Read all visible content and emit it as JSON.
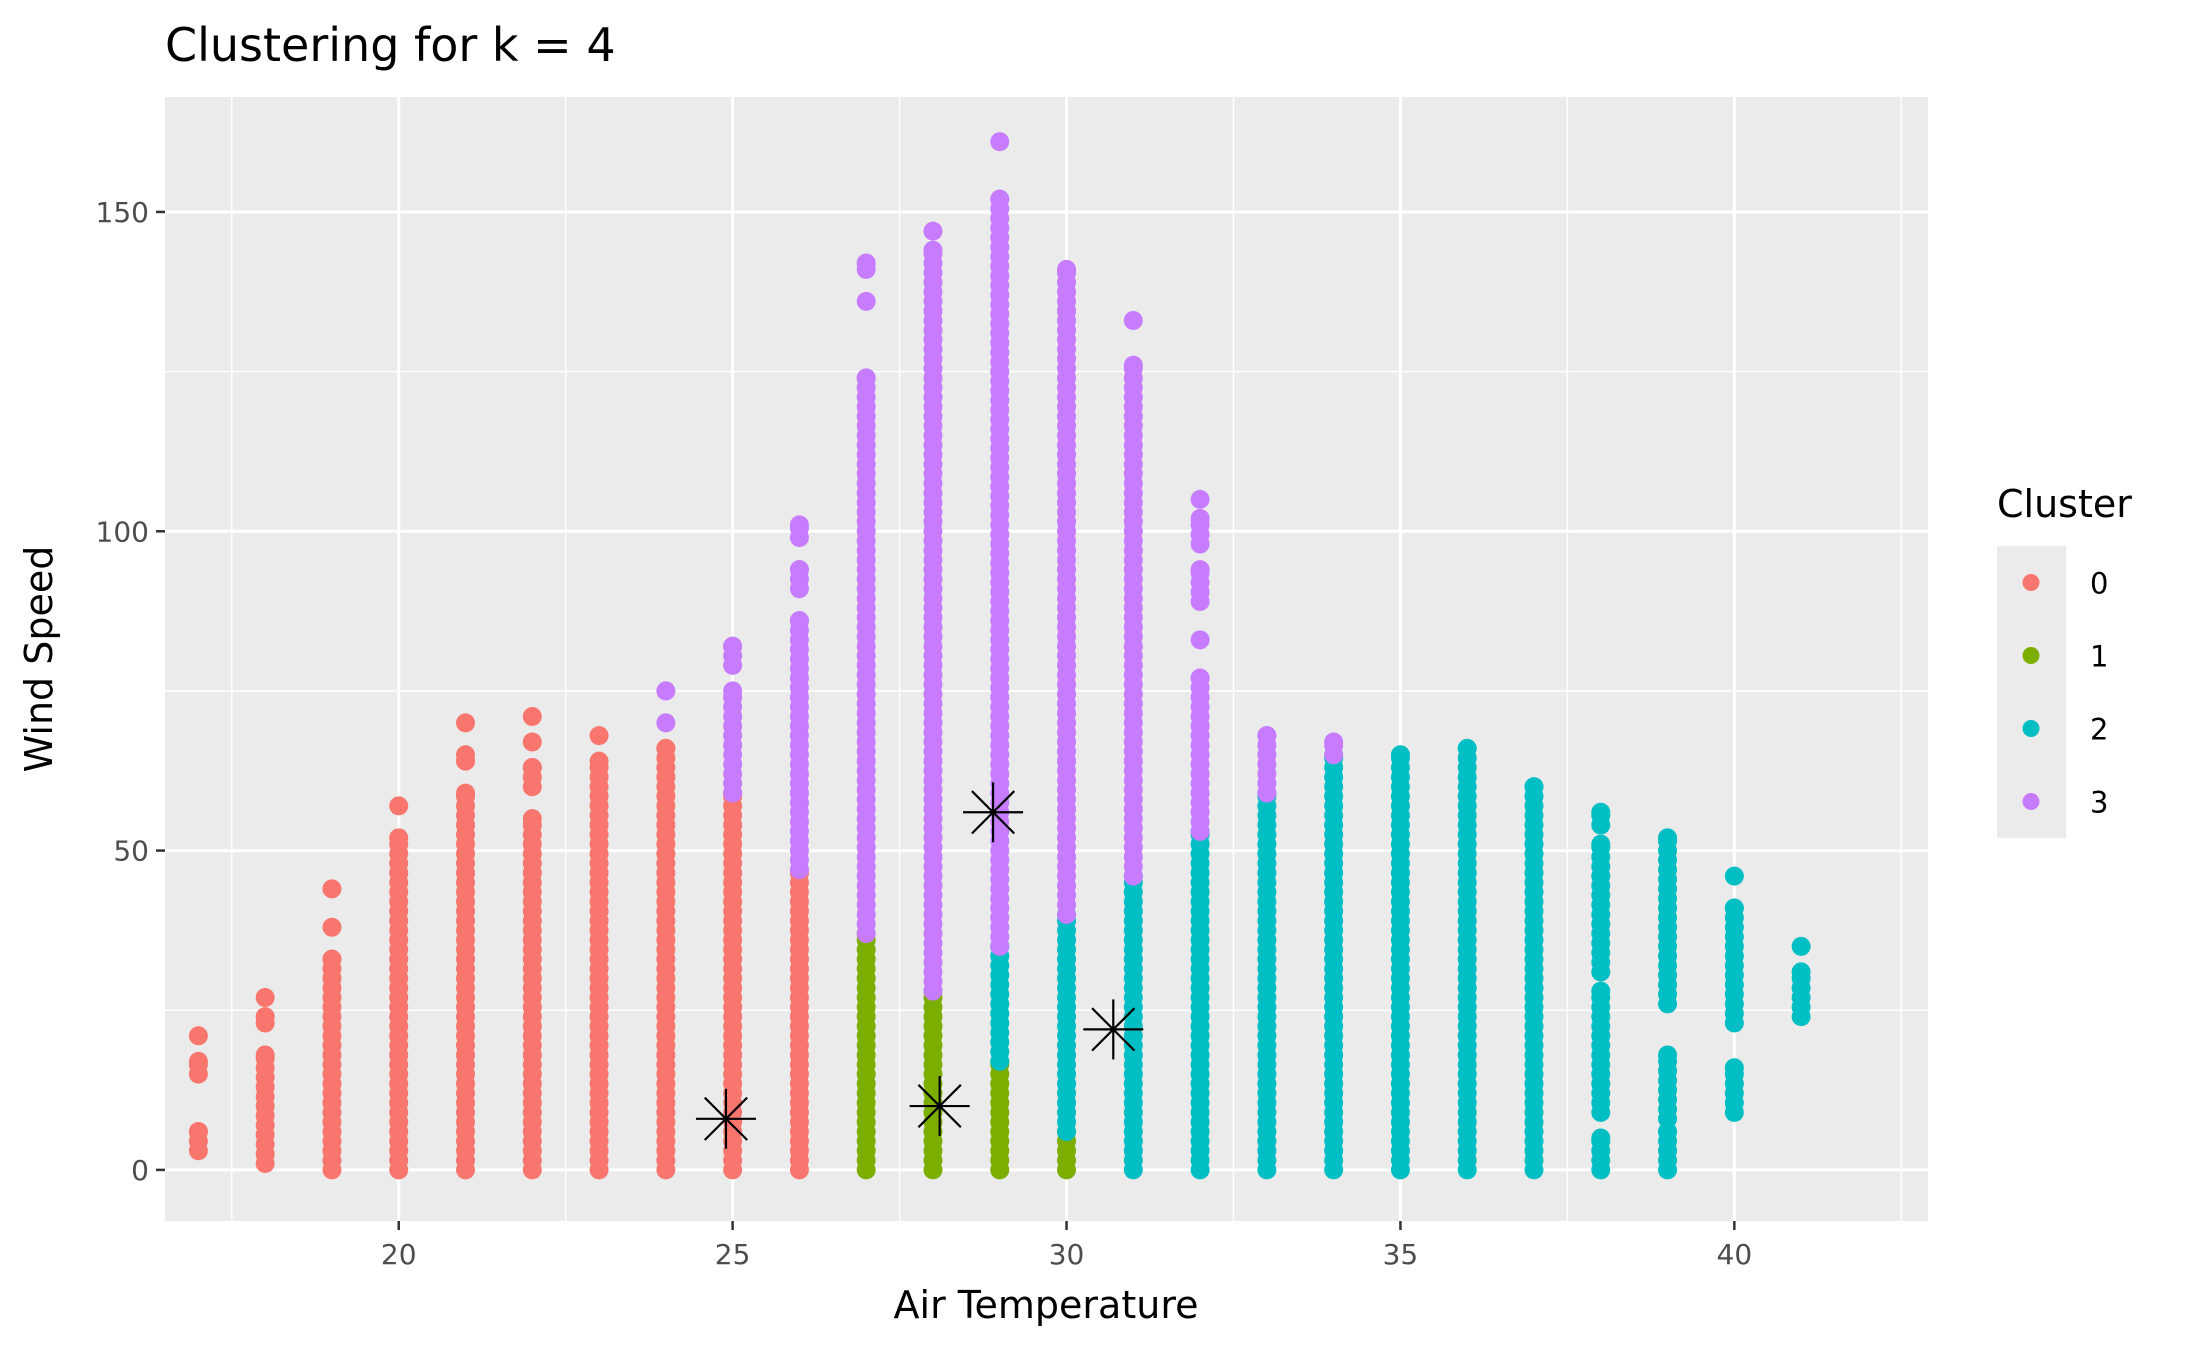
{
  "chart_data": {
    "type": "scatter",
    "title": "Clustering for k = 4",
    "xlabel": "Air Temperature",
    "ylabel": "Wind Speed",
    "xlim": [
      16.5,
      42.9
    ],
    "ylim": [
      -8,
      168
    ],
    "xticks": [
      20,
      25,
      30,
      35,
      40
    ],
    "yticks": [
      0,
      50,
      100,
      150
    ],
    "grid": true,
    "legend": {
      "title": "Cluster",
      "placement": "right",
      "entries": [
        {
          "name": "0",
          "color": "#F8766D"
        },
        {
          "name": "1",
          "color": "#7CAE00"
        },
        {
          "name": "2",
          "color": "#00BFC4"
        },
        {
          "name": "3",
          "color": "#C77CFF"
        }
      ]
    },
    "series": [
      {
        "name": "0",
        "color": "#F8766D",
        "columns": [
          {
            "x": 17,
            "ranges": [
              [
                3,
                6
              ],
              [
                15,
                17
              ],
              [
                21,
                21
              ]
            ]
          },
          {
            "x": 18,
            "ranges": [
              [
                1,
                18
              ],
              [
                23,
                24
              ],
              [
                27,
                27
              ]
            ]
          },
          {
            "x": 19,
            "ranges": [
              [
                0,
                33
              ],
              [
                38,
                38
              ],
              [
                44,
                44
              ]
            ]
          },
          {
            "x": 20,
            "ranges": [
              [
                0,
                52
              ],
              [
                57,
                57
              ]
            ]
          },
          {
            "x": 21,
            "ranges": [
              [
                0,
                59
              ],
              [
                64,
                65
              ],
              [
                70,
                70
              ]
            ]
          },
          {
            "x": 22,
            "ranges": [
              [
                0,
                55
              ],
              [
                60,
                63
              ],
              [
                67,
                67
              ],
              [
                71,
                71
              ]
            ]
          },
          {
            "x": 23,
            "ranges": [
              [
                0,
                64
              ],
              [
                68,
                68
              ]
            ]
          },
          {
            "x": 24,
            "ranges": [
              [
                0,
                66
              ]
            ]
          },
          {
            "x": 25,
            "ranges": [
              [
                0,
                59
              ]
            ]
          },
          {
            "x": 26,
            "ranges": [
              [
                0,
                47
              ]
            ]
          }
        ]
      },
      {
        "name": "1",
        "color": "#7CAE00",
        "columns": [
          {
            "x": 27,
            "ranges": [
              [
                0,
                37
              ]
            ]
          },
          {
            "x": 28,
            "ranges": [
              [
                0,
                28
              ]
            ]
          },
          {
            "x": 29,
            "ranges": [
              [
                0,
                17
              ]
            ]
          },
          {
            "x": 30,
            "ranges": [
              [
                0,
                6
              ]
            ]
          }
        ]
      },
      {
        "name": "2",
        "color": "#00BFC4",
        "columns": [
          {
            "x": 29,
            "ranges": [
              [
                17,
                35
              ]
            ]
          },
          {
            "x": 30,
            "ranges": [
              [
                6,
                40
              ]
            ]
          },
          {
            "x": 31,
            "ranges": [
              [
                0,
                46
              ]
            ]
          },
          {
            "x": 32,
            "ranges": [
              [
                0,
                53
              ]
            ]
          },
          {
            "x": 33,
            "ranges": [
              [
                0,
                59
              ]
            ]
          },
          {
            "x": 34,
            "ranges": [
              [
                0,
                65
              ]
            ]
          },
          {
            "x": 35,
            "ranges": [
              [
                0,
                65
              ]
            ]
          },
          {
            "x": 36,
            "ranges": [
              [
                0,
                66
              ]
            ]
          },
          {
            "x": 37,
            "ranges": [
              [
                0,
                60
              ]
            ]
          },
          {
            "x": 38,
            "ranges": [
              [
                0,
                5
              ],
              [
                9,
                28
              ],
              [
                31,
                51
              ],
              [
                54,
                56
              ]
            ]
          },
          {
            "x": 39,
            "ranges": [
              [
                0,
                6
              ],
              [
                8,
                18
              ],
              [
                26,
                52
              ]
            ]
          },
          {
            "x": 40,
            "ranges": [
              [
                9,
                16
              ],
              [
                23,
                41
              ],
              [
                46,
                46
              ]
            ]
          },
          {
            "x": 41,
            "ranges": [
              [
                24,
                31
              ],
              [
                35,
                35
              ]
            ]
          }
        ]
      },
      {
        "name": "3",
        "color": "#C77CFF",
        "columns": [
          {
            "x": 24,
            "ranges": [
              [
                70,
                70
              ],
              [
                75,
                75
              ]
            ]
          },
          {
            "x": 25,
            "ranges": [
              [
                59,
                75
              ],
              [
                79,
                82
              ]
            ]
          },
          {
            "x": 26,
            "ranges": [
              [
                47,
                86
              ],
              [
                91,
                94
              ],
              [
                99,
                101
              ]
            ]
          },
          {
            "x": 27,
            "ranges": [
              [
                37,
                124
              ],
              [
                136,
                136
              ],
              [
                141,
                142
              ]
            ]
          },
          {
            "x": 28,
            "ranges": [
              [
                28,
                144
              ],
              [
                147,
                147
              ]
            ]
          },
          {
            "x": 29,
            "ranges": [
              [
                35,
                152
              ],
              [
                161,
                161
              ]
            ]
          },
          {
            "x": 30,
            "ranges": [
              [
                40,
                141
              ]
            ]
          },
          {
            "x": 31,
            "ranges": [
              [
                46,
                126
              ],
              [
                133,
                133
              ]
            ]
          },
          {
            "x": 32,
            "ranges": [
              [
                53,
                77
              ],
              [
                83,
                83
              ],
              [
                89,
                94
              ],
              [
                98,
                102
              ],
              [
                105,
                105
              ]
            ]
          },
          {
            "x": 33,
            "ranges": [
              [
                59,
                68
              ]
            ]
          },
          {
            "x": 34,
            "ranges": [
              [
                65,
                67
              ]
            ]
          }
        ]
      }
    ],
    "centroids": [
      {
        "x": 24.9,
        "y": 8
      },
      {
        "x": 28.1,
        "y": 10
      },
      {
        "x": 28.9,
        "y": 56
      },
      {
        "x": 30.7,
        "y": 22
      }
    ]
  }
}
